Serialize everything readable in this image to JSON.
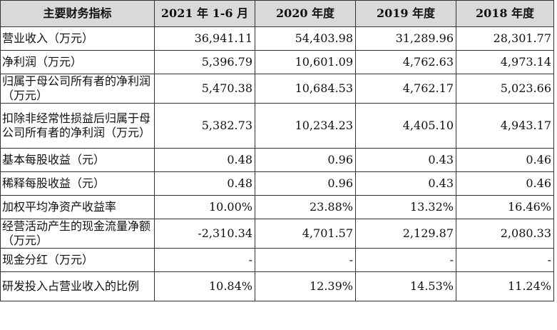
{
  "table": {
    "headers": [
      "主要财务指标",
      "2021 年 1-6 月",
      "2020 年度",
      "2019 年度",
      "2018 年度"
    ],
    "rows": [
      {
        "label": "营业收入（万元）",
        "values": [
          "36,941.11",
          "54,403.98",
          "31,289.96",
          "28,301.77"
        ]
      },
      {
        "label": "净利润（万元）",
        "values": [
          "5,396.79",
          "10,601.09",
          "4,762.63",
          "4,973.14"
        ]
      },
      {
        "label": "归属于母公司所有者的净利润（万元）",
        "values": [
          "5,470.38",
          "10,684.53",
          "4,762.17",
          "5,023.66"
        ]
      },
      {
        "label": "扣除非经常性损益后归属于母公司所有者的净利润（万元）",
        "values": [
          "5,382.73",
          "10,234.23",
          "4,405.10",
          "4,943.17"
        ]
      },
      {
        "label": "基本每股收益（元）",
        "values": [
          "0.48",
          "0.96",
          "0.43",
          "0.46"
        ]
      },
      {
        "label": "稀释每股收益（元）",
        "values": [
          "0.48",
          "0.96",
          "0.43",
          "0.46"
        ]
      },
      {
        "label": "加权平均净资产收益率",
        "values": [
          "10.00%",
          "23.88%",
          "13.32%",
          "16.46%"
        ]
      },
      {
        "label": "经营活动产生的现金流量净额（万元）",
        "values": [
          "-2,310.34",
          "4,701.57",
          "2,129.87",
          "2,080.33"
        ]
      },
      {
        "label": "现金分红（万元）",
        "values": [
          "-",
          "-",
          "-",
          "-"
        ]
      },
      {
        "label": "研发投入占营业收入的比例",
        "values": [
          "10.84%",
          "12.39%",
          "14.53%",
          "11.24%"
        ]
      }
    ]
  }
}
